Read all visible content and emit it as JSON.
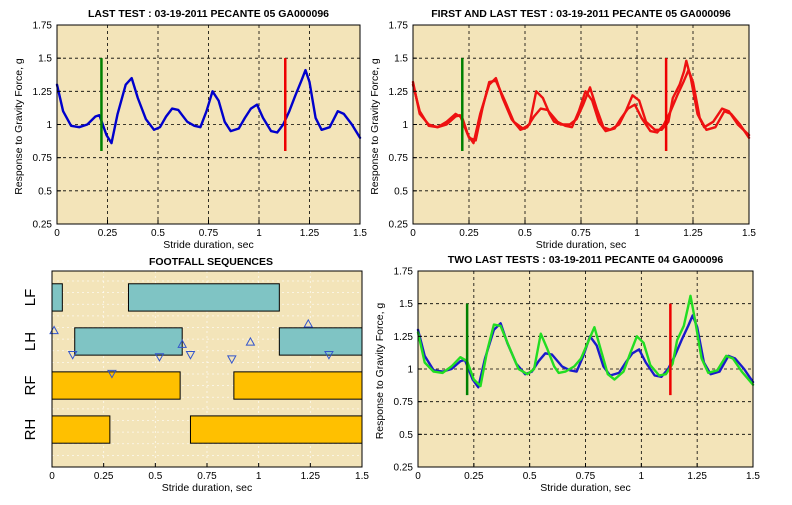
{
  "chart_data": [
    {
      "type": "line",
      "title": "LAST TEST : 03-19-2011  PECANTE 05 GA000096",
      "xlabel": "Stride duration, sec",
      "ylabel": "Response to Gravity Force, g",
      "xlim": [
        0,
        1.5
      ],
      "ylim": [
        0.25,
        1.75
      ],
      "xticks": [
        "0",
        "0.25",
        "0.5",
        "0.75",
        "1",
        "1.25",
        "1.5"
      ],
      "yticks": [
        "0.25",
        "0.5",
        "0.75",
        "1",
        "1.25",
        "1.5",
        "1.75"
      ],
      "grid": true,
      "series": [
        {
          "color": "#0000cc",
          "x": [
            0,
            0.03,
            0.07,
            0.11,
            0.15,
            0.19,
            0.21,
            0.245,
            0.27,
            0.3,
            0.34,
            0.37,
            0.4,
            0.44,
            0.48,
            0.51,
            0.54,
            0.57,
            0.6,
            0.62,
            0.645,
            0.68,
            0.71,
            0.74,
            0.77,
            0.8,
            0.83,
            0.86,
            0.9,
            0.93,
            0.96,
            0.99,
            1.02,
            1.06,
            1.09,
            1.12,
            1.15,
            1.18,
            1.21,
            1.23,
            1.25,
            1.28,
            1.31,
            1.35,
            1.39,
            1.42,
            1.46,
            1.5
          ],
          "y": [
            1.3,
            1.1,
            0.99,
            0.98,
            1.0,
            1.06,
            1.07,
            0.92,
            0.86,
            1.08,
            1.3,
            1.35,
            1.2,
            1.04,
            0.96,
            0.98,
            1.06,
            1.12,
            1.11,
            1.07,
            1.02,
            0.99,
            0.98,
            1.1,
            1.25,
            1.18,
            1.02,
            0.95,
            0.97,
            1.05,
            1.12,
            1.15,
            1.05,
            0.95,
            0.94,
            1.0,
            1.1,
            1.22,
            1.33,
            1.41,
            1.32,
            1.05,
            0.96,
            0.98,
            1.1,
            1.08,
            1.0,
            0.9
          ]
        }
      ],
      "markers": [
        {
          "x": 0.22,
          "y_range": [
            0.8,
            1.5
          ],
          "color": "#008000"
        },
        {
          "x": 1.13,
          "y_range": [
            0.8,
            1.5
          ],
          "color": "#ee0000"
        }
      ]
    },
    {
      "type": "line",
      "title": "FIRST AND LAST TEST : 03-19-2011  PECANTE 05 GA000096",
      "xlabel": "Stride duration, sec",
      "ylabel": "Response to Gravity Force, g",
      "xlim": [
        0,
        1.5
      ],
      "ylim": [
        0.25,
        1.75
      ],
      "xticks": [
        "0",
        "0.25",
        "0.5",
        "0.75",
        "1",
        "1.25",
        "1.5"
      ],
      "yticks": [
        "0.25",
        "0.5",
        "0.75",
        "1",
        "1.25",
        "1.5",
        "1.75"
      ],
      "grid": true,
      "series": [
        {
          "color": "#ee1111",
          "x": [
            0,
            0.03,
            0.07,
            0.11,
            0.15,
            0.19,
            0.21,
            0.245,
            0.27,
            0.3,
            0.34,
            0.37,
            0.4,
            0.44,
            0.48,
            0.51,
            0.54,
            0.57,
            0.6,
            0.62,
            0.645,
            0.68,
            0.71,
            0.74,
            0.77,
            0.8,
            0.83,
            0.86,
            0.9,
            0.93,
            0.96,
            0.99,
            1.02,
            1.06,
            1.09,
            1.12,
            1.15,
            1.18,
            1.21,
            1.23,
            1.25,
            1.28,
            1.31,
            1.35,
            1.39,
            1.42,
            1.46,
            1.5
          ],
          "y": [
            1.3,
            1.1,
            0.99,
            0.98,
            1.0,
            1.06,
            1.07,
            0.92,
            0.86,
            1.08,
            1.3,
            1.35,
            1.2,
            1.04,
            0.96,
            0.98,
            1.06,
            1.12,
            1.11,
            1.07,
            1.02,
            0.99,
            0.98,
            1.1,
            1.25,
            1.18,
            1.02,
            0.95,
            0.97,
            1.05,
            1.12,
            1.15,
            1.05,
            0.95,
            0.94,
            1.0,
            1.1,
            1.22,
            1.33,
            1.41,
            1.32,
            1.05,
            0.96,
            0.98,
            1.1,
            1.08,
            1.0,
            0.9
          ]
        },
        {
          "color": "#ee1111",
          "x": [
            0,
            0.03,
            0.07,
            0.11,
            0.15,
            0.19,
            0.22,
            0.25,
            0.28,
            0.31,
            0.34,
            0.37,
            0.41,
            0.45,
            0.49,
            0.52,
            0.55,
            0.58,
            0.61,
            0.63,
            0.66,
            0.7,
            0.73,
            0.76,
            0.79,
            0.82,
            0.85,
            0.88,
            0.92,
            0.95,
            0.98,
            1.01,
            1.04,
            1.08,
            1.11,
            1.14,
            1.16,
            1.19,
            1.21,
            1.22,
            1.24,
            1.27,
            1.3,
            1.34,
            1.38,
            1.41,
            1.45,
            1.5
          ],
          "y": [
            1.32,
            1.08,
            1.0,
            0.98,
            1.02,
            1.08,
            1.05,
            0.9,
            0.88,
            1.12,
            1.32,
            1.33,
            1.18,
            1.02,
            0.97,
            1.0,
            1.25,
            1.2,
            1.08,
            1.02,
            1.0,
            1.0,
            1.04,
            1.15,
            1.28,
            1.12,
            0.98,
            0.96,
            1.0,
            1.1,
            1.22,
            1.18,
            1.02,
            0.96,
            0.96,
            1.02,
            1.2,
            1.3,
            1.4,
            1.48,
            1.35,
            1.08,
            0.98,
            1.02,
            1.12,
            1.1,
            1.0,
            0.92
          ]
        }
      ],
      "markers": [
        {
          "x": 0.22,
          "y_range": [
            0.8,
            1.5
          ],
          "color": "#008000"
        },
        {
          "x": 1.13,
          "y_range": [
            0.8,
            1.5
          ],
          "color": "#ee0000"
        }
      ]
    },
    {
      "type": "bar",
      "title": "FOOTFALL SEQUENCES",
      "xlabel": "Stride duration, sec",
      "xlim": [
        0,
        1.5
      ],
      "xticks": [
        "0",
        "0.25",
        "0.5",
        "0.75",
        "1",
        "1.25",
        "1.5"
      ],
      "categories": [
        "LF",
        "LH",
        "RF",
        "RH"
      ],
      "bars": [
        {
          "limb": "LF",
          "start": 0,
          "end": 0.05,
          "color": "#7fc4c4"
        },
        {
          "limb": "LF",
          "start": 0.37,
          "end": 1.1,
          "color": "#7fc4c4"
        },
        {
          "limb": "LH",
          "start": 0.11,
          "end": 0.63,
          "color": "#7fc4c4"
        },
        {
          "limb": "LH",
          "start": 1.1,
          "end": 1.5,
          "color": "#7fc4c4"
        },
        {
          "limb": "RF",
          "start": 0,
          "end": 0.62,
          "color": "#ffc000"
        },
        {
          "limb": "RF",
          "start": 0.88,
          "end": 1.5,
          "color": "#ffc000"
        },
        {
          "limb": "RH",
          "start": 0,
          "end": 0.28,
          "color": "#ffc000"
        },
        {
          "limb": "RH",
          "start": 0.67,
          "end": 1.5,
          "color": "#ffc000"
        }
      ],
      "triangles_up": [
        {
          "x": 0.01,
          "y": 0.25
        },
        {
          "x": 0.63,
          "y": 0.56
        },
        {
          "x": 0.96,
          "y": 0.51
        },
        {
          "x": 1.24,
          "y": 0.1
        }
      ],
      "triangles_down": [
        {
          "x": 0.1,
          "y": 0.8
        },
        {
          "x": 0.29,
          "y": 1.23
        },
        {
          "x": 0.52,
          "y": 0.85
        },
        {
          "x": 0.67,
          "y": 0.8
        },
        {
          "x": 0.87,
          "y": 0.9
        },
        {
          "x": 1.34,
          "y": 0.8
        }
      ]
    },
    {
      "type": "line",
      "title": "TWO LAST TESTS : 03-19-2011  PECANTE 04 GA000096",
      "xlabel": "Stride duration, sec",
      "ylabel": "Response to Gravity Force, g",
      "xlim": [
        0,
        1.5
      ],
      "ylim": [
        0.25,
        1.75
      ],
      "xticks": [
        "0",
        "0.25",
        "0.5",
        "0.75",
        "1",
        "1.25",
        "1.5"
      ],
      "yticks": [
        "0.25",
        "0.5",
        "0.75",
        "1",
        "1.25",
        "1.5",
        "1.75"
      ],
      "grid": true,
      "series": [
        {
          "color": "#1a1acc",
          "x": [
            0,
            0.03,
            0.07,
            0.11,
            0.15,
            0.19,
            0.21,
            0.245,
            0.27,
            0.3,
            0.34,
            0.37,
            0.4,
            0.44,
            0.48,
            0.51,
            0.54,
            0.57,
            0.6,
            0.62,
            0.645,
            0.68,
            0.71,
            0.74,
            0.77,
            0.8,
            0.83,
            0.86,
            0.9,
            0.93,
            0.96,
            0.99,
            1.02,
            1.06,
            1.09,
            1.12,
            1.15,
            1.18,
            1.21,
            1.23,
            1.25,
            1.28,
            1.31,
            1.35,
            1.39,
            1.42,
            1.46,
            1.5
          ],
          "y": [
            1.3,
            1.1,
            0.99,
            0.98,
            1.0,
            1.06,
            1.07,
            0.92,
            0.86,
            1.08,
            1.3,
            1.35,
            1.2,
            1.04,
            0.96,
            0.98,
            1.06,
            1.12,
            1.11,
            1.07,
            1.02,
            0.99,
            0.98,
            1.1,
            1.25,
            1.18,
            1.02,
            0.95,
            0.97,
            1.05,
            1.12,
            1.15,
            1.05,
            0.95,
            0.94,
            1.0,
            1.1,
            1.22,
            1.33,
            1.41,
            1.32,
            1.05,
            0.96,
            0.98,
            1.1,
            1.08,
            1.0,
            0.9
          ]
        },
        {
          "color": "#22dd22",
          "x": [
            0,
            0.03,
            0.07,
            0.11,
            0.15,
            0.19,
            0.22,
            0.25,
            0.28,
            0.31,
            0.34,
            0.37,
            0.41,
            0.45,
            0.49,
            0.52,
            0.55,
            0.58,
            0.61,
            0.63,
            0.66,
            0.7,
            0.73,
            0.76,
            0.79,
            0.82,
            0.85,
            0.88,
            0.92,
            0.95,
            0.98,
            1.01,
            1.04,
            1.08,
            1.11,
            1.14,
            1.16,
            1.19,
            1.21,
            1.22,
            1.24,
            1.27,
            1.3,
            1.34,
            1.38,
            1.41,
            1.45,
            1.5
          ],
          "y": [
            1.28,
            1.05,
            0.98,
            0.97,
            1.02,
            1.09,
            1.06,
            0.92,
            0.87,
            1.14,
            1.34,
            1.33,
            1.16,
            1.0,
            0.96,
            1.0,
            1.27,
            1.15,
            1.02,
            0.97,
            0.98,
            1.02,
            1.08,
            1.2,
            1.32,
            1.14,
            0.96,
            0.92,
            0.98,
            1.12,
            1.25,
            1.2,
            1.03,
            0.95,
            0.96,
            1.04,
            1.22,
            1.33,
            1.48,
            1.56,
            1.38,
            1.08,
            0.97,
            0.99,
            1.1,
            1.08,
            0.98,
            0.88
          ]
        }
      ],
      "markers": [
        {
          "x": 0.22,
          "y_range": [
            0.8,
            1.5
          ],
          "color": "#008000"
        },
        {
          "x": 1.13,
          "y_range": [
            0.8,
            1.5
          ],
          "color": "#ee0000"
        }
      ]
    }
  ]
}
